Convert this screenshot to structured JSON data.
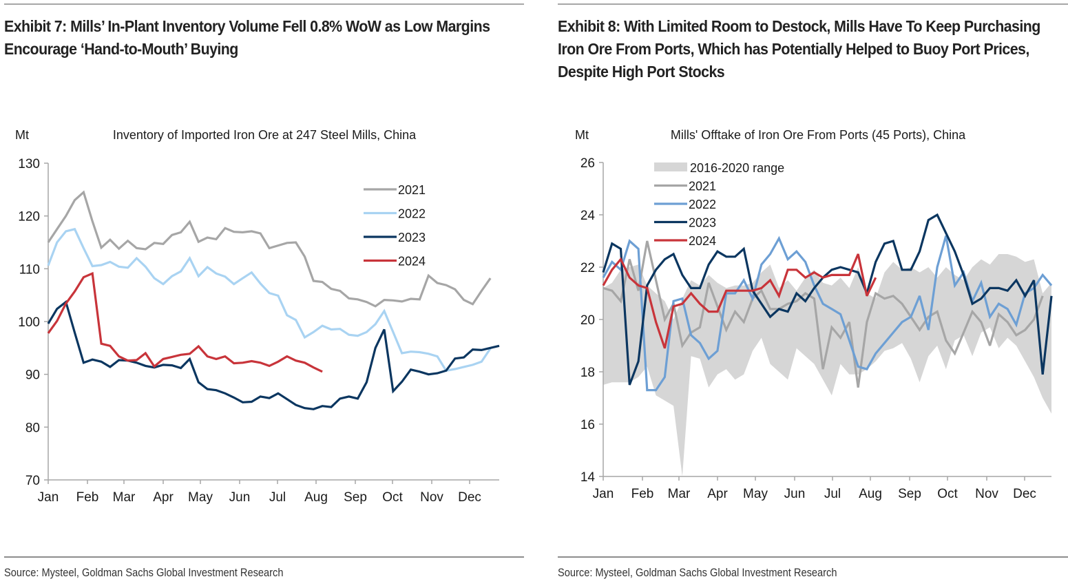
{
  "panels": [
    {
      "exhibit_title": "Exhibit 7: Mills’ In-Plant Inventory Volume Fell 0.8% WoW as Low Margins Encourage ‘Hand-to-Mouth’ Buying",
      "source": "Source: Mysteel, Goldman Sachs Global Investment Research"
    },
    {
      "exhibit_title": "Exhibit 8: With Limited Room to Destock, Mills Have To Keep Purchasing Iron Ore From Ports, Which has Potentially Helped to Buoy Port Prices, Despite High Port Stocks",
      "source": "Source: Mysteel, Goldman Sachs Global Investment Research"
    }
  ],
  "chart_data": [
    {
      "type": "line",
      "title": "Inventory of Imported Iron Ore at 247 Steel Mills, China",
      "ylabel": "Mt",
      "xlabel": "",
      "ylim": [
        70,
        130
      ],
      "yticks": [
        70,
        80,
        90,
        100,
        110,
        120,
        130
      ],
      "xticks": [
        "Jan",
        "Feb",
        "Mar",
        "Apr",
        "May",
        "Jun",
        "Jul",
        "Aug",
        "Sep",
        "Oct",
        "Nov",
        "Dec"
      ],
      "x_unit": "week of year",
      "xlim": [
        1,
        53
      ],
      "grid": false,
      "legend": "top-right",
      "series": [
        {
          "name": "2021",
          "color": "#a6a6a6",
          "values": [
            115.0,
            117.5,
            120.0,
            123.0,
            124.5,
            119.0,
            114.0,
            115.5,
            113.8,
            115.3,
            113.9,
            113.7,
            114.9,
            114.7,
            116.4,
            116.9,
            118.9,
            115.1,
            115.9,
            115.6,
            117.7,
            117.0,
            116.9,
            117.1,
            116.7,
            113.9,
            114.4,
            114.9,
            115.0,
            112.3,
            107.7,
            107.5,
            106.2,
            105.8,
            104.4,
            104.2,
            103.7,
            102.9,
            104.1,
            104.0,
            103.8,
            104.3,
            104.2,
            108.7,
            107.3,
            106.9,
            106.1,
            104.1,
            103.3,
            105.8,
            108.2
          ]
        },
        {
          "name": "2022",
          "color": "#a9d3f2",
          "values": [
            110.6,
            115.0,
            117.1,
            117.5,
            113.9,
            110.5,
            110.7,
            111.3,
            110.4,
            110.2,
            112.0,
            110.4,
            108.2,
            107.1,
            108.6,
            109.5,
            112.0,
            108.6,
            110.3,
            109.1,
            108.5,
            107.1,
            108.2,
            109.3,
            107.2,
            105.4,
            104.9,
            101.2,
            100.3,
            97.0,
            98.0,
            99.2,
            98.5,
            98.6,
            97.5,
            97.3,
            98.0,
            99.5,
            102.0,
            98.0,
            94.0,
            94.3,
            94.2,
            93.9,
            93.4,
            90.7,
            91.0,
            91.4,
            91.8,
            92.4,
            94.9
          ]
        },
        {
          "name": "2023",
          "color": "#0b3660",
          "values": [
            99.6,
            102.4,
            103.7,
            97.9,
            92.2,
            92.8,
            92.4,
            91.4,
            92.7,
            92.6,
            92.2,
            91.6,
            91.3,
            91.8,
            91.7,
            91.2,
            92.9,
            88.5,
            87.2,
            87.0,
            86.4,
            85.6,
            84.7,
            84.8,
            85.8,
            85.5,
            86.4,
            85.3,
            84.2,
            83.6,
            83.4,
            84.0,
            83.8,
            85.4,
            85.8,
            85.4,
            88.5,
            95.0,
            98.5,
            86.8,
            88.6,
            90.9,
            90.5,
            90.0,
            90.2,
            90.7,
            93.0,
            93.2,
            94.7,
            94.6,
            95.0,
            95.4
          ]
        },
        {
          "name": "2024",
          "color": "#c8343a",
          "values": [
            97.8,
            100.1,
            103.4,
            105.7,
            108.4,
            109.1,
            95.8,
            95.4,
            93.4,
            92.6,
            92.7,
            94.0,
            91.5,
            92.9,
            93.3,
            93.7,
            93.9,
            95.3,
            93.4,
            92.9,
            93.4,
            92.1,
            92.2,
            92.5,
            92.2,
            91.6,
            92.4,
            93.4,
            92.6,
            92.2,
            91.3,
            90.5
          ]
        }
      ]
    },
    {
      "type": "area",
      "title": "Mills' Offtake of Iron Ore From Ports (45 Ports), China",
      "ylabel": "Mt",
      "xlabel": "",
      "ylim": [
        14,
        26
      ],
      "yticks": [
        14,
        16,
        18,
        20,
        22,
        24,
        26
      ],
      "xticks": [
        "Jan",
        "Feb",
        "Mar",
        "Apr",
        "May",
        "Jun",
        "Jul",
        "Aug",
        "Sep",
        "Oct",
        "Nov",
        "Dec"
      ],
      "x_unit": "week of year",
      "xlim": [
        1,
        53
      ],
      "grid": false,
      "legend": "top-left",
      "band": {
        "name": "2016-2020 range",
        "color": "#d6d6d6",
        "upper": [
          21.2,
          21.4,
          21.9,
          22.0,
          22.1,
          21.3,
          21.0,
          20.7,
          20.0,
          20.8,
          21.5,
          21.3,
          21.7,
          21.4,
          21.2,
          21.3,
          21.3,
          21.4,
          21.8,
          22.1,
          21.2,
          21.5,
          21.1,
          21.6,
          21.9,
          21.4,
          21.3,
          21.6,
          21.2,
          22.0,
          21.0,
          20.8,
          21.8,
          22.2,
          21.9,
          22.0,
          21.8,
          22.0,
          21.6,
          22.0,
          21.7,
          21.5,
          22.0,
          22.3,
          22.1,
          22.5,
          22.5,
          22.4,
          22.2,
          22.3,
          21.0,
          21.4
        ],
        "lower": [
          17.5,
          17.6,
          17.6,
          17.6,
          17.8,
          18.2,
          17.1,
          16.9,
          16.7,
          14.0,
          18.6,
          18.5,
          17.4,
          17.9,
          18.1,
          17.7,
          17.9,
          18.8,
          19.3,
          18.3,
          18.0,
          17.7,
          18.9,
          18.6,
          18.3,
          17.7,
          17.1,
          18.3,
          17.9,
          17.9,
          18.1,
          18.4,
          18.8,
          18.9,
          19.1,
          18.5,
          17.6,
          18.6,
          19.0,
          18.1,
          19.2,
          19.4,
          18.6,
          19.5,
          19.7,
          18.9,
          19.3,
          19.0,
          18.4,
          17.8,
          17.0,
          16.4
        ]
      },
      "series": [
        {
          "name": "2021",
          "color": "#a6a6a6",
          "values": [
            21.2,
            21.1,
            20.7,
            22.3,
            21.1,
            23.0,
            21.5,
            20.0,
            20.6,
            19.0,
            19.5,
            19.7,
            21.4,
            20.5,
            19.6,
            20.3,
            19.9,
            20.8,
            21.1,
            20.4,
            20.4,
            20.6,
            20.7,
            21.0,
            20.8,
            18.1,
            19.7,
            19.3,
            19.9,
            17.4,
            19.9,
            21.0,
            20.8,
            20.9,
            20.6,
            20.1,
            19.6,
            20.1,
            20.3,
            19.2,
            18.7,
            19.5,
            20.3,
            19.9,
            19.0,
            20.2,
            19.9,
            19.4,
            19.6,
            20.0,
            20.9
          ]
        },
        {
          "name": "2022",
          "color": "#6d9fd4",
          "values": [
            21.6,
            22.2,
            21.9,
            23.0,
            22.7,
            17.3,
            17.3,
            17.8,
            20.7,
            20.8,
            19.4,
            19.1,
            18.5,
            18.8,
            21.0,
            21.0,
            21.5,
            20.8,
            22.1,
            22.5,
            23.1,
            22.3,
            22.6,
            22.2,
            21.3,
            20.6,
            20.4,
            20.2,
            19.2,
            18.2,
            18.1,
            18.7,
            19.1,
            19.5,
            19.9,
            20.1,
            20.9,
            19.6,
            22.0,
            23.2,
            21.3,
            21.8,
            20.7,
            21.4,
            20.1,
            20.6,
            20.4,
            19.8,
            21.0,
            21.2,
            21.7,
            21.3
          ]
        },
        {
          "name": "2023",
          "color": "#0b3660",
          "values": [
            21.8,
            22.9,
            22.7,
            17.5,
            18.4,
            21.3,
            21.9,
            22.3,
            22.5,
            21.7,
            21.2,
            21.2,
            22.1,
            22.6,
            22.4,
            22.4,
            22.7,
            21.1,
            20.6,
            20.1,
            20.4,
            20.3,
            21.0,
            20.7,
            21.2,
            21.6,
            21.9,
            22.0,
            21.9,
            21.8,
            21.0,
            22.2,
            22.9,
            23.0,
            21.9,
            21.9,
            22.6,
            23.8,
            24.0,
            23.3,
            22.6,
            21.7,
            20.6,
            20.8,
            21.2,
            21.2,
            21.1,
            21.5,
            20.9,
            21.5,
            17.9,
            20.9
          ]
        },
        {
          "name": "2024",
          "color": "#c8343a",
          "values": [
            21.3,
            21.9,
            22.3,
            21.6,
            21.3,
            21.2,
            19.9,
            18.9,
            20.5,
            20.6,
            21.0,
            20.6,
            20.3,
            20.3,
            21.1,
            21.1,
            21.1,
            21.1,
            21.2,
            21.5,
            20.9,
            21.9,
            21.9,
            21.6,
            21.8,
            21.6,
            21.7,
            21.7,
            21.7,
            22.5,
            20.9,
            21.6
          ]
        }
      ]
    }
  ]
}
